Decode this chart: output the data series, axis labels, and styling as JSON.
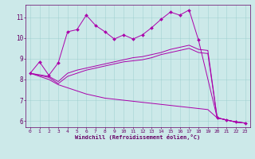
{
  "xlabel": "Windchill (Refroidissement éolien,°C)",
  "xlim": [
    -0.5,
    23.5
  ],
  "ylim": [
    5.7,
    11.6
  ],
  "xticks": [
    0,
    1,
    2,
    3,
    4,
    5,
    6,
    7,
    8,
    9,
    10,
    11,
    12,
    13,
    14,
    15,
    16,
    17,
    18,
    19,
    20,
    21,
    22,
    23
  ],
  "yticks": [
    6,
    7,
    8,
    9,
    10,
    11
  ],
  "bg_color": "#cce9e9",
  "line_color": "#aa00aa",
  "line1_x": [
    0,
    1,
    2,
    3,
    4,
    5,
    6,
    7,
    8,
    9,
    10,
    11,
    12,
    13,
    14,
    15,
    16,
    17,
    18,
    20,
    21,
    22,
    23
  ],
  "line1_y": [
    8.3,
    8.85,
    8.2,
    8.8,
    10.3,
    10.4,
    11.1,
    10.6,
    10.3,
    9.95,
    10.15,
    9.95,
    10.15,
    10.5,
    10.9,
    11.25,
    11.1,
    11.35,
    9.9,
    6.15,
    6.05,
    5.95,
    5.9
  ],
  "line2_x": [
    0,
    2,
    3,
    4,
    5,
    6,
    7,
    8,
    9,
    10,
    11,
    12,
    13,
    14,
    15,
    16,
    17,
    18,
    19,
    20,
    21,
    22,
    23
  ],
  "line2_y": [
    8.3,
    8.15,
    7.9,
    8.3,
    8.45,
    8.55,
    8.65,
    8.75,
    8.85,
    8.95,
    9.05,
    9.1,
    9.2,
    9.3,
    9.45,
    9.55,
    9.65,
    9.45,
    9.4,
    6.15,
    6.05,
    5.95,
    5.9
  ],
  "line3_x": [
    0,
    2,
    3,
    4,
    5,
    6,
    7,
    8,
    9,
    10,
    11,
    12,
    13,
    14,
    15,
    16,
    17,
    18,
    19,
    20,
    21,
    22,
    23
  ],
  "line3_y": [
    8.3,
    8.1,
    7.8,
    8.15,
    8.3,
    8.45,
    8.55,
    8.65,
    8.75,
    8.85,
    8.9,
    8.95,
    9.05,
    9.2,
    9.3,
    9.4,
    9.5,
    9.3,
    9.25,
    6.15,
    6.05,
    5.95,
    5.9
  ],
  "line4_x": [
    0,
    2,
    3,
    4,
    5,
    6,
    7,
    8,
    9,
    10,
    11,
    12,
    13,
    14,
    15,
    16,
    17,
    18,
    19,
    20,
    21,
    22,
    23
  ],
  "line4_y": [
    8.3,
    8.0,
    7.75,
    7.6,
    7.45,
    7.3,
    7.2,
    7.1,
    7.05,
    7.0,
    6.95,
    6.9,
    6.85,
    6.8,
    6.75,
    6.7,
    6.65,
    6.6,
    6.55,
    6.15,
    6.05,
    5.95,
    5.9
  ]
}
